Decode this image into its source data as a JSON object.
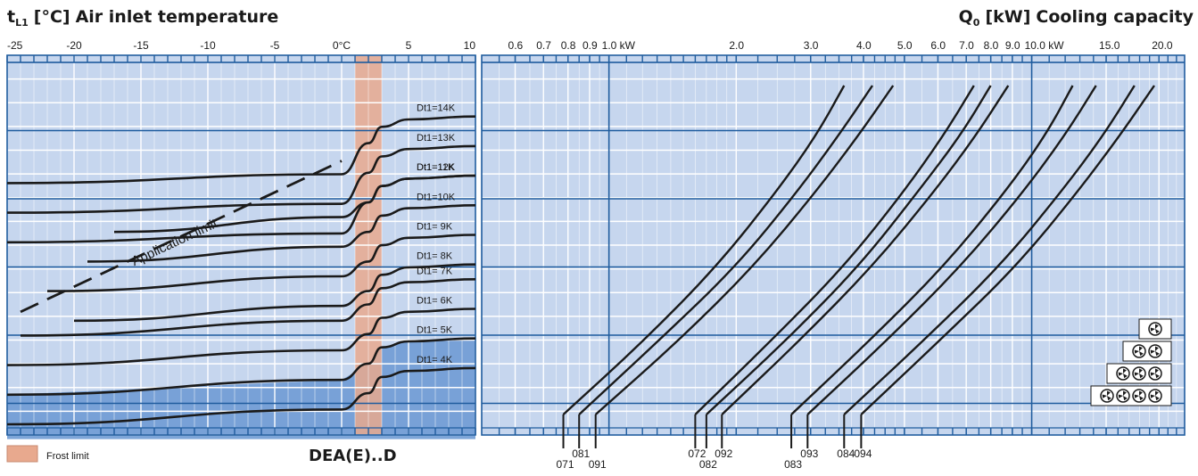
{
  "colors": {
    "panel_bg": "#c6d6ee",
    "grid_major": "#1f5c9e",
    "grid_minor": "#ffffff",
    "shaded_region": "#6f9bd4",
    "frost_band": "#e8a98e",
    "curve": "#1a1a1a"
  },
  "chart_data": [
    {
      "type": "line",
      "title": "Air inlet temperature",
      "title_symbol": "t",
      "title_subscript": "L1",
      "title_unit": "[°C]",
      "x_tick_labels": [
        "-25",
        "-20",
        "-15",
        "-10",
        "-5",
        "0°C",
        "5",
        "10"
      ],
      "x_tick_values": [
        -25,
        -20,
        -15,
        -10,
        -5,
        0,
        5,
        10
      ],
      "xlim": [
        -25,
        10
      ],
      "frost_band_x": [
        1.0,
        3.0
      ],
      "application_limit": {
        "label": "Application limit",
        "x": [
          -24,
          0
        ],
        "y_curve_level": [
          7.3,
          12.4
        ]
      },
      "series": [
        {
          "name": "Dt1=14K",
          "x": [
            -25,
            0,
            2,
            3,
            5,
            10
          ],
          "y": [
            11.65,
            11.95,
            13.0,
            13.55,
            13.8,
            13.9
          ]
        },
        {
          "name": "Dt1=13K",
          "x": [
            -25,
            0,
            2,
            3,
            5,
            10
          ],
          "y": [
            10.65,
            10.95,
            12.0,
            12.55,
            12.8,
            12.9
          ]
        },
        {
          "name": "Dt1=12K",
          "x": [
            -25,
            0,
            2,
            3,
            5,
            10
          ],
          "y": [
            9.65,
            9.95,
            11.0,
            11.55,
            11.8,
            11.9
          ]
        },
        {
          "name": "Dt1=11K",
          "x": [
            -17,
            0,
            2,
            3,
            5,
            10
          ],
          "y": [
            10.0,
            10.5,
            11.0,
            11.55,
            11.8,
            11.9
          ]
        },
        {
          "name": "Dt1=10K",
          "x": [
            -19,
            0,
            2,
            3,
            5,
            10
          ],
          "y": [
            9.0,
            9.5,
            10.0,
            10.55,
            10.8,
            10.9
          ]
        },
        {
          "name": "Dt1= 9K",
          "x": [
            -22,
            0,
            2,
            3,
            5,
            10
          ],
          "y": [
            8.0,
            8.5,
            9.0,
            9.55,
            9.8,
            9.9
          ]
        },
        {
          "name": "Dt1= 8K",
          "x": [
            -20,
            0,
            2,
            3,
            5,
            10
          ],
          "y": [
            7.0,
            7.5,
            8.0,
            8.55,
            8.8,
            8.9
          ]
        },
        {
          "name": "Dt1= 7K",
          "x": [
            -24,
            0,
            2,
            3,
            5,
            10
          ],
          "y": [
            6.5,
            7.0,
            7.55,
            8.1,
            8.3,
            8.4
          ]
        },
        {
          "name": "Dt1= 6K",
          "x": [
            -25,
            0,
            2,
            3,
            5,
            10
          ],
          "y": [
            5.5,
            6.0,
            6.55,
            7.1,
            7.3,
            7.4
          ]
        },
        {
          "name": "Dt1= 5K",
          "x": [
            -25,
            0,
            2,
            3,
            5,
            10
          ],
          "y": [
            4.5,
            5.0,
            5.55,
            6.1,
            6.3,
            6.4
          ]
        },
        {
          "name": "Dt1= 4K",
          "x": [
            -25,
            0,
            2,
            3,
            5,
            10
          ],
          "y": [
            3.5,
            4.0,
            4.55,
            5.1,
            5.3,
            5.4
          ]
        }
      ]
    },
    {
      "type": "line",
      "title": "Cooling capacity",
      "title_symbol": "Q",
      "title_subscript": "0",
      "title_unit": "[kW]",
      "xscale": "log",
      "xlim": [
        0.5,
        23
      ],
      "x_tick_labels": [
        "0.6",
        "0.7",
        "0.8",
        "0.9",
        "1.0  kW",
        "2.0",
        "3.0",
        "4.0",
        "5.0",
        "6.0",
        "7.0",
        "8.0",
        "9.0",
        "10.0 kW",
        "15.0",
        "20.0"
      ],
      "x_tick_values": [
        0.6,
        0.7,
        0.8,
        0.9,
        1.0,
        2.0,
        3.0,
        4.0,
        5.0,
        6.0,
        7.0,
        8.0,
        9.0,
        10.0,
        15.0,
        20.0
      ],
      "fan_symbols": [
        1,
        2,
        3,
        4
      ],
      "series": [
        {
          "name": "071",
          "x": [
            0.78,
            1.2,
            1.8,
            2.5,
            3.1,
            3.6
          ],
          "y_frac": [
            0.0,
            0.22,
            0.45,
            0.68,
            0.85,
            1.0
          ]
        },
        {
          "name": "081",
          "x": [
            0.85,
            1.3,
            2.0,
            2.8,
            3.5,
            4.2
          ],
          "y_frac": [
            0.0,
            0.22,
            0.45,
            0.68,
            0.85,
            1.0
          ]
        },
        {
          "name": "091",
          "x": [
            0.93,
            1.45,
            2.2,
            3.1,
            3.9,
            4.7
          ],
          "y_frac": [
            0.0,
            0.22,
            0.45,
            0.68,
            0.85,
            1.0
          ]
        },
        {
          "name": "072",
          "x": [
            1.6,
            2.4,
            3.6,
            5.0,
            6.2,
            7.3
          ],
          "y_frac": [
            0.0,
            0.22,
            0.45,
            0.68,
            0.85,
            1.0
          ]
        },
        {
          "name": "082",
          "x": [
            1.7,
            2.6,
            3.9,
            5.4,
            6.8,
            8.0
          ],
          "y_frac": [
            0.0,
            0.22,
            0.45,
            0.68,
            0.85,
            1.0
          ]
        },
        {
          "name": "092",
          "x": [
            1.85,
            2.8,
            4.2,
            5.9,
            7.4,
            8.8
          ],
          "y_frac": [
            0.0,
            0.22,
            0.45,
            0.68,
            0.85,
            1.0
          ]
        },
        {
          "name": "083",
          "x": [
            2.7,
            4.1,
            6.2,
            8.7,
            10.8,
            12.5
          ],
          "y_frac": [
            0.0,
            0.22,
            0.45,
            0.68,
            0.85,
            1.0
          ]
        },
        {
          "name": "093",
          "x": [
            2.95,
            4.5,
            6.8,
            9.6,
            12.0,
            14.2
          ],
          "y_frac": [
            0.0,
            0.22,
            0.45,
            0.68,
            0.85,
            1.0
          ]
        },
        {
          "name": "084",
          "x": [
            3.6,
            5.5,
            8.4,
            11.8,
            14.8,
            17.5
          ],
          "y_frac": [
            0.0,
            0.22,
            0.45,
            0.68,
            0.85,
            1.0
          ]
        },
        {
          "name": "094",
          "x": [
            3.95,
            6.0,
            9.2,
            12.9,
            16.2,
            19.5
          ],
          "y_frac": [
            0.0,
            0.22,
            0.45,
            0.68,
            0.85,
            1.0
          ]
        }
      ]
    }
  ],
  "legend": {
    "frost_limit_label": "Frost limit"
  },
  "model_label": "DEA(E)..D"
}
